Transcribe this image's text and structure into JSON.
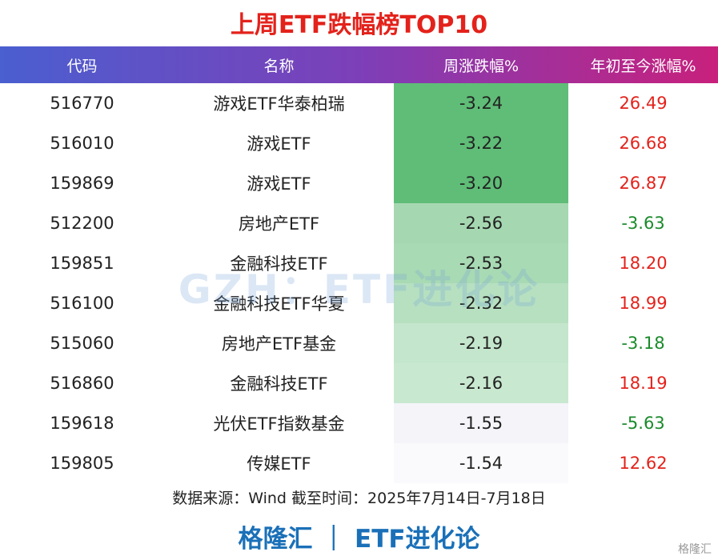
{
  "title": "上周ETF跌幅榜TOP10",
  "table": {
    "header": [
      "代码",
      "名称",
      "周涨跌幅%",
      "年初至今涨幅%"
    ],
    "rows": [
      [
        "516770",
        "游戏ETF华泰柏瑞",
        "-3.24",
        "26.49"
      ],
      [
        "516010",
        "游戏ETF",
        "-3.22",
        "26.68"
      ],
      [
        "159869",
        "游戏ETF",
        "-3.20",
        "26.87"
      ],
      [
        "512200",
        "房地产ETF",
        "-2.56",
        "-3.63"
      ],
      [
        "159851",
        "金融科技ETF",
        "-2.53",
        "18.20"
      ],
      [
        "516100",
        "金融科技ETF华夏",
        "-2.32",
        "18.99"
      ],
      [
        "515060",
        "房地产ETF基金",
        "-2.19",
        "-3.18"
      ],
      [
        "516860",
        "金融科技ETF",
        "-2.16",
        "18.19"
      ],
      [
        "159618",
        "光伏ETF指数基金",
        "-1.55",
        "-5.63"
      ],
      [
        "159805",
        "传媒ETF",
        "-1.54",
        "12.62"
      ]
    ],
    "change_colors": [
      "#5fbd77",
      "#5fbd77",
      "#5fbd77",
      "#a5d8b1",
      "#a8dab4",
      "#b7e0c1",
      "#c4e6cc",
      "#c9e8d0",
      "#f4f4f9",
      "#fafafc"
    ]
  },
  "source": "数据来源：Wind 截至时间：2025年7月14日-7月18日",
  "footer": "格隆汇 ｜ ETF进化论",
  "watermark": "GZH：ETF进化论",
  "logo": "格隆汇"
}
